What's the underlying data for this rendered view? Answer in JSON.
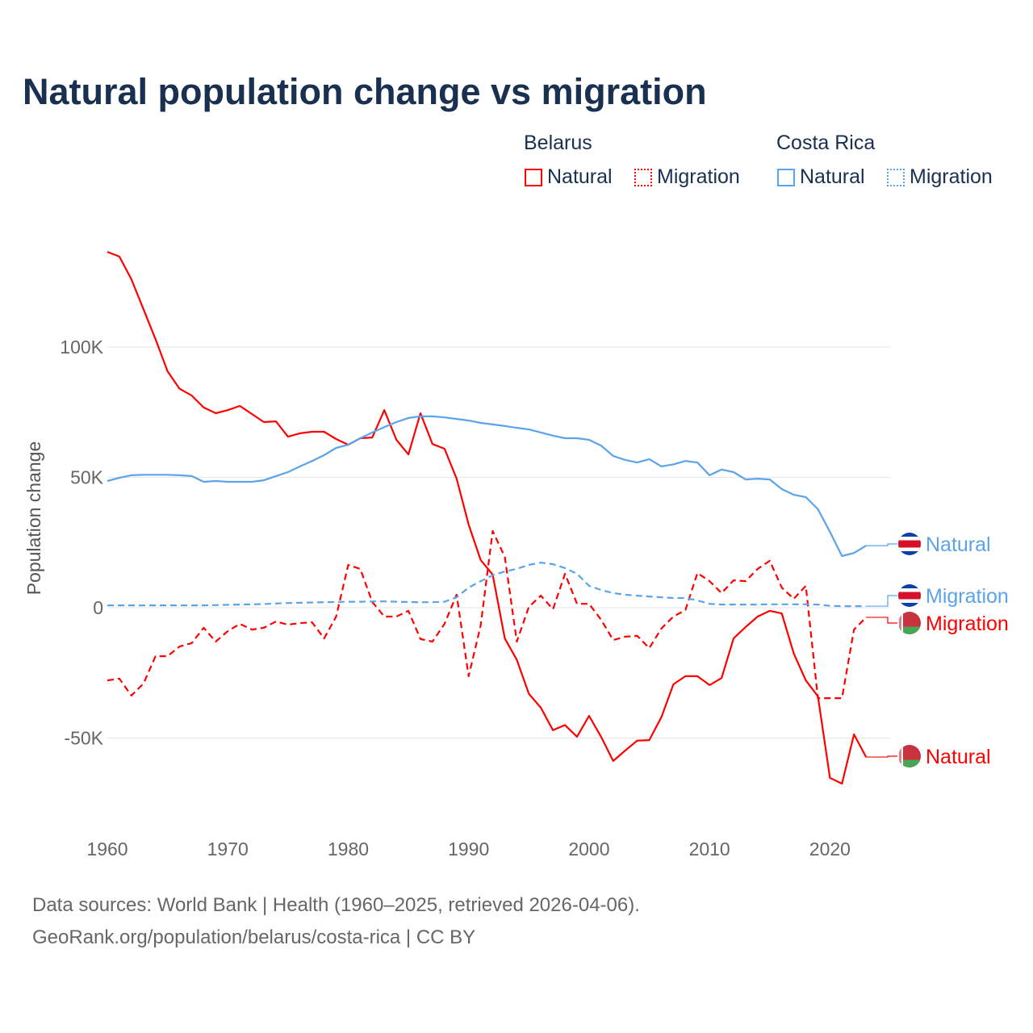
{
  "title": "Natural population change vs migration",
  "legend": {
    "groups": [
      {
        "name": "Belarus",
        "color": "#ff0000",
        "items": [
          "Natural",
          "Migration"
        ]
      },
      {
        "name": "Costa Rica",
        "color": "#5ba3ea",
        "items": [
          "Natural",
          "Migration"
        ]
      }
    ]
  },
  "footer": {
    "line1": "Data sources: World Bank | Health (1960–2025, retrieved 2026-04-06).",
    "line2": "GeoRank.org/population/belarus/costa-rica | CC BY"
  },
  "chart_data": {
    "type": "line",
    "title": "Natural population change vs migration",
    "xlabel": "",
    "ylabel": "Population change",
    "xlim": [
      1960,
      2025
    ],
    "ylim": [
      -85000,
      140000
    ],
    "x_ticks": [
      1960,
      1970,
      1980,
      1990,
      2000,
      2010,
      2020
    ],
    "y_ticks": [
      {
        "value": 100000,
        "label": "100K"
      },
      {
        "value": 50000,
        "label": "50K"
      },
      {
        "value": 0,
        "label": "0"
      },
      {
        "value": -50000,
        "label": "-50K"
      }
    ],
    "grid": true,
    "x_start": 1960,
    "series": [
      {
        "name": "Belarus Natural",
        "country": "Belarus",
        "kind": "Natural",
        "color": "#ff0000",
        "dash": "solid",
        "end_label": "Natural",
        "values": [
          136500,
          134700,
          126000,
          114500,
          103000,
          90700,
          84000,
          81400,
          76800,
          74600,
          75800,
          77400,
          74300,
          71200,
          71500,
          65600,
          66900,
          67500,
          67500,
          64700,
          62500,
          65000,
          65300,
          75800,
          64400,
          58800,
          74600,
          62800,
          61000,
          49500,
          31900,
          18300,
          12700,
          -11800,
          -20000,
          -33000,
          -38400,
          -47000,
          -45000,
          -49500,
          -41500,
          -49500,
          -58800,
          -54800,
          -51000,
          -50800,
          -42000,
          -29400,
          -26300,
          -26300,
          -29700,
          -27000,
          -11800,
          -7400,
          -3400,
          -1200,
          -2200,
          -17600,
          -27900,
          -34000,
          -65300,
          -67500,
          -48600,
          -57300
        ]
      },
      {
        "name": "Belarus Migration",
        "country": "Belarus",
        "kind": "Migration",
        "color": "#ff0000",
        "dash": "dashed",
        "end_label": "Migration",
        "values": [
          -27900,
          -27200,
          -33700,
          -29100,
          -18600,
          -18600,
          -14900,
          -13600,
          -7700,
          -13000,
          -9000,
          -6200,
          -8400,
          -7700,
          -5300,
          -6500,
          -5900,
          -5600,
          -11800,
          -3400,
          16400,
          14900,
          2200,
          -3400,
          -3400,
          -1200,
          -12000,
          -13000,
          -6200,
          5000,
          -26300,
          -6800,
          29400,
          19500,
          -13000,
          300,
          4600,
          -600,
          13000,
          1500,
          1500,
          -4600,
          -12400,
          -11100,
          -10800,
          -15500,
          -8000,
          -3400,
          -900,
          13300,
          10200,
          5600,
          10500,
          10200,
          14900,
          18000,
          7700,
          3400,
          8400,
          -34700,
          -34700,
          -34700,
          -8400,
          -3700
        ]
      },
      {
        "name": "Costa Rica Natural",
        "country": "Costa Rica",
        "kind": "Natural",
        "color": "#5ba3ea",
        "dash": "solid",
        "end_label": "Natural",
        "values": [
          48600,
          49800,
          50800,
          51000,
          51000,
          51000,
          50800,
          50500,
          48300,
          48600,
          48300,
          48300,
          48300,
          48900,
          50500,
          52000,
          54200,
          56300,
          58500,
          61300,
          62500,
          65000,
          67200,
          69300,
          71200,
          72800,
          73400,
          73400,
          73000,
          72400,
          71800,
          70900,
          70300,
          69700,
          69000,
          68400,
          67200,
          66000,
          65000,
          65000,
          64400,
          62200,
          58200,
          56700,
          55700,
          57000,
          54200,
          55000,
          56300,
          55700,
          50800,
          53000,
          52000,
          49200,
          49500,
          49200,
          45500,
          43300,
          42400,
          37800,
          29100,
          19800,
          21000,
          23800
        ]
      },
      {
        "name": "Costa Rica Migration",
        "country": "Costa Rica",
        "kind": "Migration",
        "color": "#5ba3ea",
        "dash": "dashed",
        "end_label": "Migration",
        "values": [
          900,
          900,
          900,
          900,
          900,
          900,
          900,
          900,
          900,
          1000,
          1100,
          1200,
          1300,
          1400,
          1600,
          1800,
          1900,
          2000,
          2100,
          2200,
          2300,
          2300,
          2400,
          2400,
          2300,
          2200,
          2100,
          2100,
          2300,
          4000,
          7700,
          10200,
          12400,
          13900,
          14900,
          16400,
          17300,
          16700,
          15200,
          13000,
          8400,
          6800,
          5600,
          5000,
          4600,
          4300,
          4000,
          3700,
          3700,
          2800,
          1500,
          1200,
          1200,
          1200,
          1200,
          1300,
          1300,
          1300,
          1300,
          1200,
          700,
          600,
          600,
          600
        ]
      }
    ]
  }
}
